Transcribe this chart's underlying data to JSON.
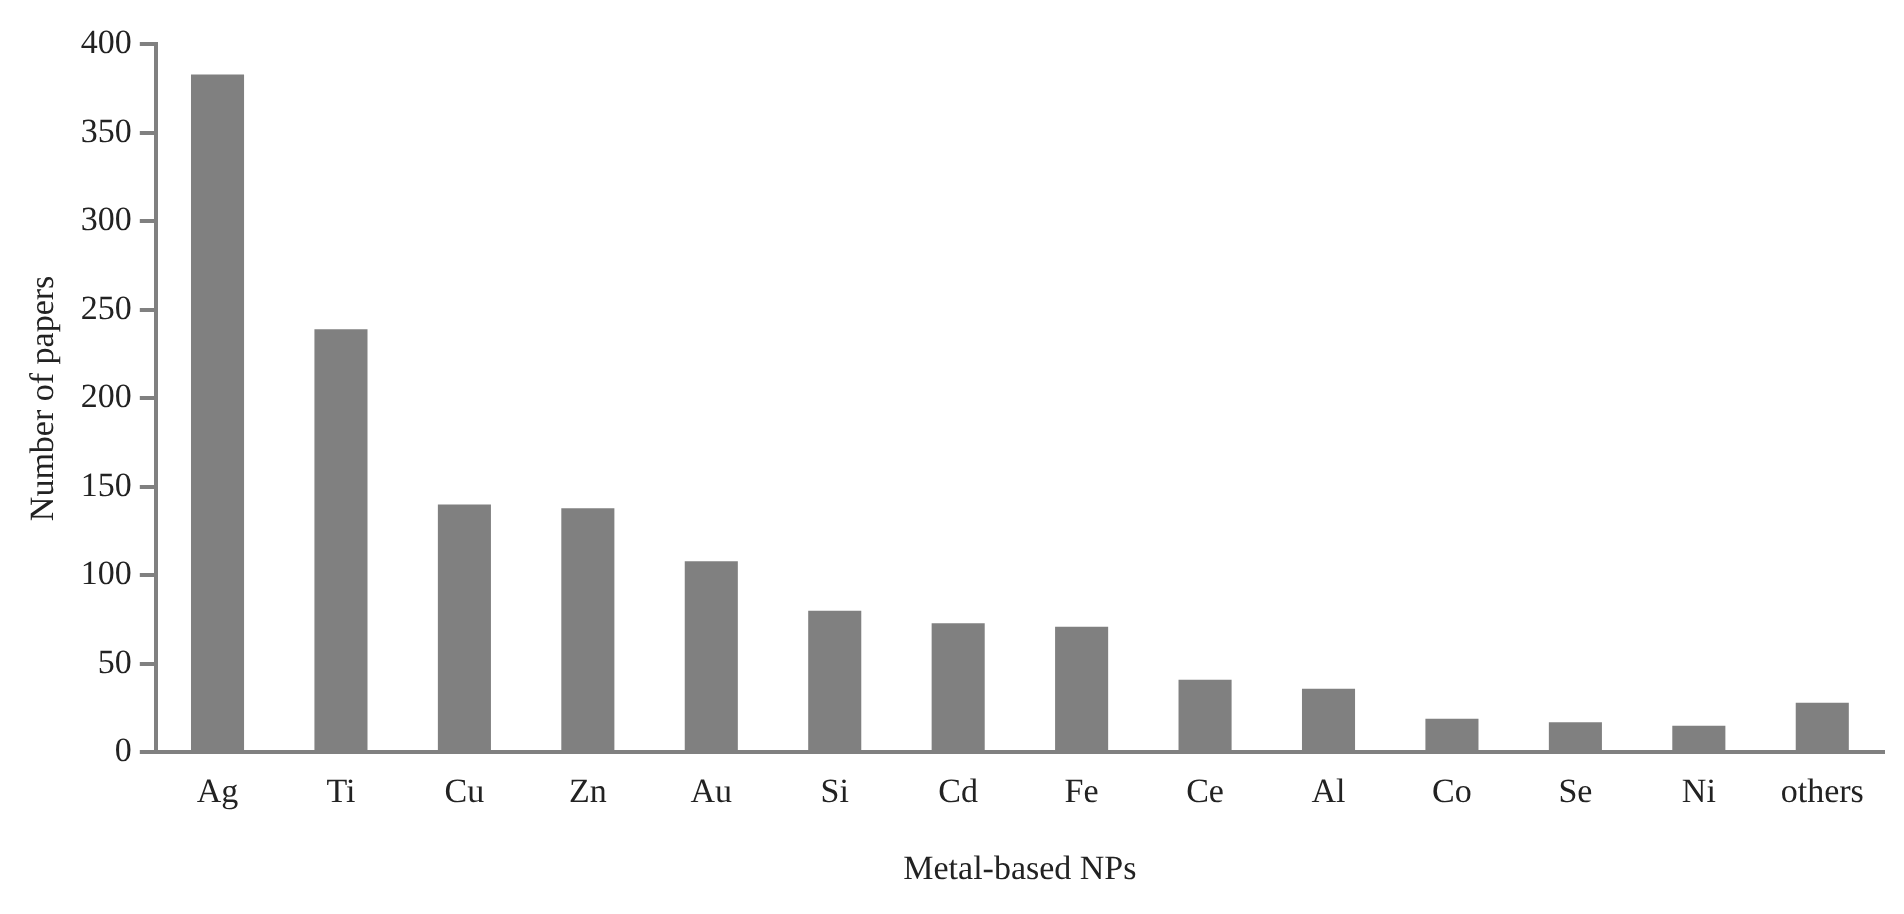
{
  "chart_data": {
    "type": "bar",
    "xlabel": "Metal-based NPs",
    "ylabel": "Number of papers",
    "categories": [
      "Ag",
      "Ti",
      "Cu",
      "Zn",
      "Au",
      "Si",
      "Cd",
      "Fe",
      "Ce",
      "Al",
      "Co",
      "Se",
      "Ni",
      "others"
    ],
    "values": [
      383,
      239,
      140,
      138,
      108,
      80,
      73,
      71,
      41,
      36,
      19,
      17,
      15,
      28
    ],
    "color": "#808080",
    "ylim": [
      0,
      400
    ],
    "yticks": [
      0,
      50,
      100,
      150,
      200,
      250,
      300,
      350,
      400
    ],
    "grid": false,
    "legend": false
  }
}
